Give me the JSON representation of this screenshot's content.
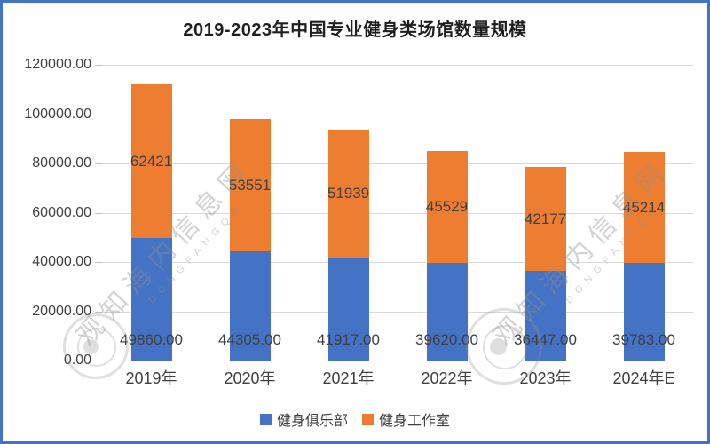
{
  "title": "2019-2023年中国专业健身类场馆数量规模",
  "colors": {
    "club_blue": "#4472C4",
    "studio_orange": "#ED7D31",
    "frame_border": "#4472C4",
    "gridline": "#D9D9D9",
    "axis_line": "#BFBFBF",
    "label_text": "#404040"
  },
  "chart_data": {
    "type": "bar",
    "stacked": true,
    "title": "2019-2023年中国专业健身类场馆数量规模",
    "categories": [
      "2019年",
      "2020年",
      "2021年",
      "2022年",
      "2023年",
      "2024年E"
    ],
    "series": [
      {
        "name": "健身俱乐部",
        "color": "#4472C4",
        "values": [
          49860,
          44305,
          41917,
          39620,
          36447,
          39783
        ],
        "labels": [
          "49860.00",
          "44305.00",
          "41917.00",
          "39620.00",
          "36447.00",
          "39783.00"
        ],
        "label_position": "inside-base"
      },
      {
        "name": "健身工作室",
        "color": "#ED7D31",
        "values": [
          62421,
          53551,
          51939,
          45529,
          42177,
          45214
        ],
        "labels": [
          "62421",
          "53551",
          "51939",
          "45529",
          "42177",
          "45214"
        ],
        "label_position": "inside-center"
      }
    ],
    "xlabel": "",
    "ylabel": "",
    "ylim": [
      0,
      120000
    ],
    "ytick_step": 20000,
    "ytick_labels_top_to_bottom": [
      "120000.00",
      "100000.00",
      "80000.00",
      "60000.00",
      "40000.00",
      "20000.00",
      "0.00"
    ],
    "grid": true,
    "legend_position": "bottom"
  },
  "legend": {
    "items": [
      {
        "label": "健身俱乐部",
        "color": "#4472C4"
      },
      {
        "label": "健身工作室",
        "color": "#ED7D31"
      }
    ]
  },
  "watermark": {
    "cn_text": "观知海内信息网",
    "en_text": "DONGFANGQB"
  }
}
